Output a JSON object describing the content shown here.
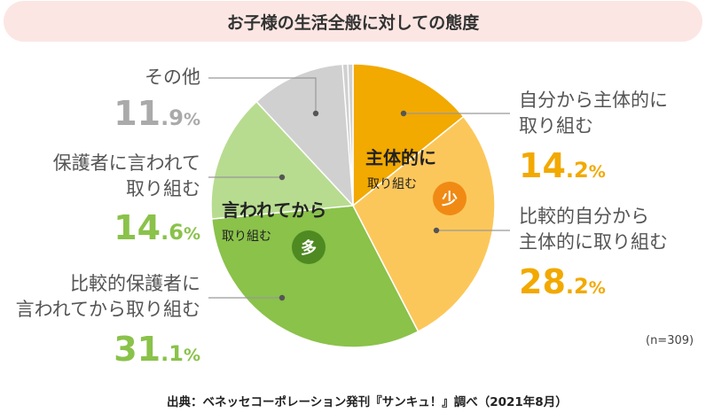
{
  "title": "お子様の生活全般に対しての態度",
  "sample_size": "(n=309)",
  "source": "出典：ベネッセコーポレーション発刊『サンキュ！』調べ（2021年8月）",
  "center_labels": {
    "self_driven_line1": "主体的に",
    "self_driven_line2": "取り組む",
    "self_driven_badge": "少",
    "told_line1": "言われてから",
    "told_line2": "取り組む",
    "told_badge": "多"
  },
  "chart_data": {
    "type": "pie",
    "unit": "%",
    "start_angle_deg": 0,
    "direction": "clockwise",
    "slices": [
      {
        "label_lines": [
          "自分から主体的に",
          "取り組む"
        ],
        "value": 14.2,
        "int": "14",
        "dec": ".2",
        "pct": "%",
        "color": "#f2a900",
        "value_color": "#f2a900"
      },
      {
        "label_lines": [
          "比較的自分から",
          "主体的に取り組む"
        ],
        "value": 28.2,
        "int": "28",
        "dec": ".2",
        "pct": "%",
        "color": "#fcc75a",
        "value_color": "#f2a900"
      },
      {
        "label_lines": [
          "比較的保護者に",
          "言われてから取り組む"
        ],
        "value": 31.1,
        "int": "31",
        "dec": ".1",
        "pct": "%",
        "color": "#8ac24a",
        "value_color": "#8ac24a"
      },
      {
        "label_lines": [
          "保護者に言われて",
          "取り組む"
        ],
        "value": 14.6,
        "int": "14",
        "dec": ".6",
        "pct": "%",
        "color": "#b7dc90",
        "value_color": "#8ac24a"
      },
      {
        "label_lines": [
          "その他"
        ],
        "value": 11.9,
        "int": "11",
        "dec": ".9",
        "pct": "%",
        "color": "#d0d0d0",
        "value_color": "#aaaaaa"
      }
    ],
    "badge_colors": {
      "self_driven": "#f08a14",
      "told": "#4e8a21"
    }
  }
}
